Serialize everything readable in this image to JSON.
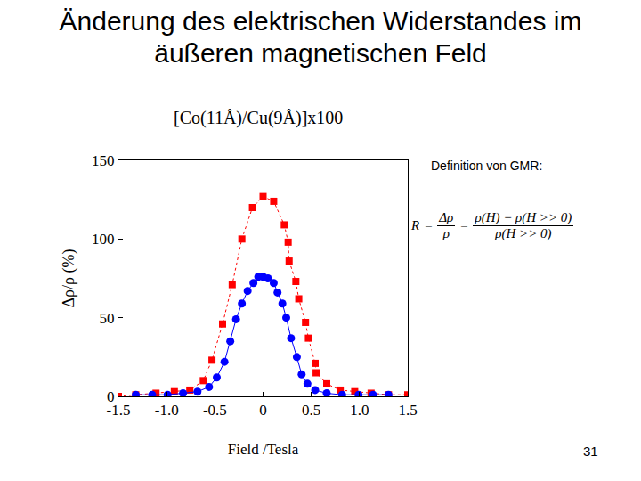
{
  "slide": {
    "title": "Änderung des elektrischen Widerstandes im äußeren magnetischen Feld",
    "definition": {
      "label": "Definition von GMR:",
      "formula": {
        "left": "R",
        "equals": "=",
        "fraction1": {
          "num": "Δρ",
          "den": "ρ"
        },
        "fraction2": {
          "num": "ρ(H) − ρ(H >> 0)",
          "den": "ρ(H >> 0)"
        }
      }
    },
    "page_number": "31"
  },
  "chart_data": {
    "type": "scatter",
    "title": "[Co(11Å)/Cu(9Å)]x100",
    "x_label": "Field /Tesla",
    "y_label": "Δρ/ρ (%)",
    "xlim": [
      -1.5,
      1.5
    ],
    "xticks": [
      -1.5,
      {
        "value": -1,
        "label": "-1.0"
      },
      -0.5,
      0,
      0.5,
      {
        "value": 1,
        "label": "1.0"
      },
      1.5
    ],
    "ylim": [
      0,
      150
    ],
    "yticks": [
      0,
      50,
      100,
      150
    ],
    "grid": false,
    "series": [
      {
        "color": "#ff0000",
        "marker": "square",
        "line_style": "dotted",
        "x": [
          -1.5,
          -1.32,
          -1.11,
          -0.92,
          -0.76,
          -0.62,
          -0.53,
          -0.42,
          -0.32,
          -0.22,
          -0.11,
          0,
          0.11,
          0.22,
          0.26,
          0.27,
          0.34,
          0.37,
          0.44,
          0.47,
          0.54,
          0.55,
          0.66,
          0.8,
          0.95,
          1.12,
          1.3,
          1.5
        ],
        "values": [
          0,
          1,
          2,
          3,
          4,
          10,
          23,
          46,
          71,
          100,
          120,
          127,
          124,
          109,
          98,
          86,
          73,
          62,
          47,
          37,
          21,
          15,
          8,
          4,
          3,
          2,
          1,
          1
        ]
      },
      {
        "color": "#0000ff",
        "marker": "circle",
        "line_style": "solid",
        "x": [
          -1.32,
          -1.15,
          -0.99,
          -0.83,
          -0.68,
          -0.56,
          -0.48,
          -0.4,
          -0.34,
          -0.28,
          -0.22,
          -0.16,
          -0.1,
          -0.05,
          0,
          0.05,
          0.11,
          0.15,
          0.2,
          0.24,
          0.29,
          0.35,
          0.4,
          0.46,
          0.54,
          0.66,
          0.82,
          0.99,
          1.14,
          1.3
        ],
        "values": [
          1,
          1,
          1,
          2,
          3,
          6,
          12,
          22,
          35,
          49,
          59,
          67,
          72,
          76,
          76,
          75,
          72,
          66,
          59,
          50,
          37,
          25,
          14,
          8,
          4,
          2,
          1,
          1,
          1,
          1
        ]
      }
    ]
  }
}
